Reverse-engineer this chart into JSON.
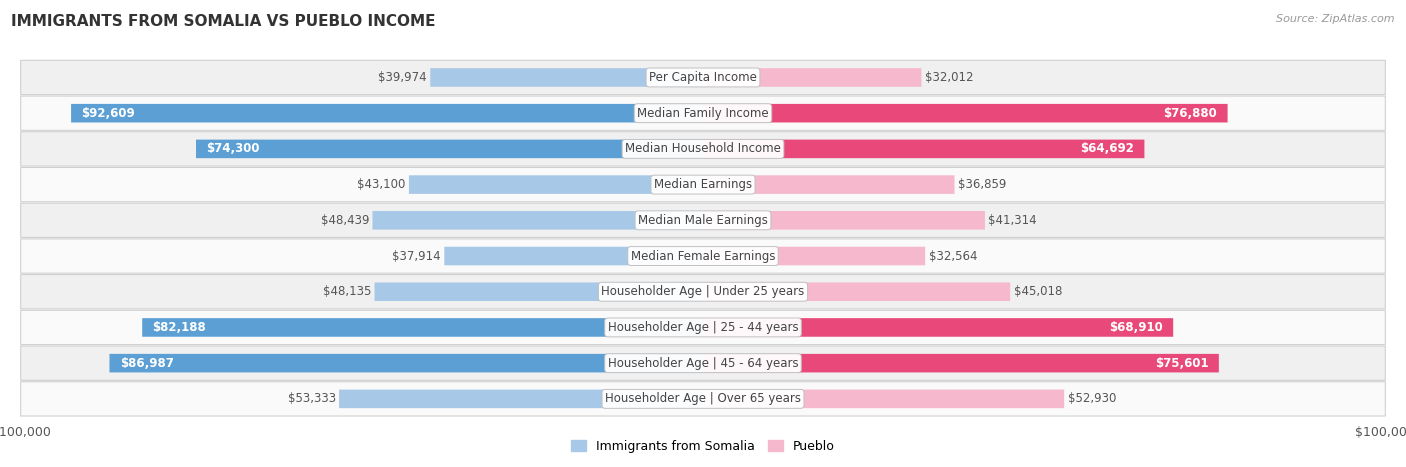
{
  "title": "IMMIGRANTS FROM SOMALIA VS PUEBLO INCOME",
  "source": "Source: ZipAtlas.com",
  "categories": [
    "Per Capita Income",
    "Median Family Income",
    "Median Household Income",
    "Median Earnings",
    "Median Male Earnings",
    "Median Female Earnings",
    "Householder Age | Under 25 years",
    "Householder Age | 25 - 44 years",
    "Householder Age | 45 - 64 years",
    "Householder Age | Over 65 years"
  ],
  "somalia_values": [
    39974,
    92609,
    74300,
    43100,
    48439,
    37914,
    48135,
    82188,
    86987,
    53333
  ],
  "pueblo_values": [
    32012,
    76880,
    64692,
    36859,
    41314,
    32564,
    45018,
    68910,
    75601,
    52930
  ],
  "somalia_labels": [
    "$39,974",
    "$92,609",
    "$74,300",
    "$43,100",
    "$48,439",
    "$37,914",
    "$48,135",
    "$82,188",
    "$86,987",
    "$53,333"
  ],
  "pueblo_labels": [
    "$32,012",
    "$76,880",
    "$64,692",
    "$36,859",
    "$41,314",
    "$32,564",
    "$45,018",
    "$68,910",
    "$75,601",
    "$52,930"
  ],
  "max_value": 100000,
  "somalia_color_light": "#a8c8e8",
  "somalia_color_dark": "#5b9fd4",
  "pueblo_color_light": "#f5b8cc",
  "pueblo_color_dark": "#e8497a",
  "row_bg_even": "#f0f0f0",
  "row_bg_odd": "#fafafa",
  "row_border": "#d0d0d0",
  "label_fontsize": 8.5,
  "category_fontsize": 8.5,
  "axis_label_fontsize": 9,
  "legend_fontsize": 9,
  "bar_height": 0.52,
  "somalia_threshold": 60000,
  "pueblo_threshold": 60000
}
